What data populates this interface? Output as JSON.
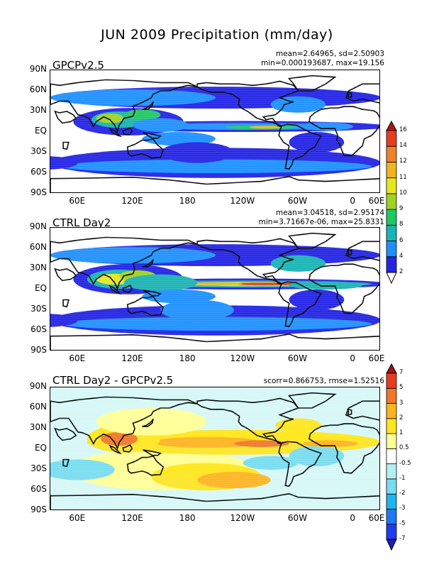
{
  "title": "JUN 2009 Precipitation (mm/day)",
  "lat_labels": [
    "90N",
    "60N",
    "30N",
    "EQ",
    "30S",
    "60S",
    "90S"
  ],
  "lon_labels": [
    "60E",
    "120E",
    "180",
    "120W",
    "60W",
    "0",
    "60E"
  ],
  "panels": [
    {
      "title": "GPCPv2.5",
      "stats_line1": "mean=2.64965, sd=2.50903",
      "stats_line2": "min=0.000193687, max=19.156"
    },
    {
      "title": "CTRL Day2",
      "stats_line1": "mean=3.04518, sd=2.95174",
      "stats_line2": "min=3.71667e-06, max=25.8331"
    },
    {
      "title": "CTRL Day2 - GPCPv2.5",
      "stats_line1": "scorr=0.866753, rmse=1.52516",
      "stats_line2": ""
    }
  ],
  "colorbar_precip": {
    "levels": [
      "2",
      "4",
      "6",
      "8",
      "9",
      "10",
      "11",
      "12",
      "14",
      "16"
    ],
    "colors": [
      "#ffffff",
      "#2323e6",
      "#1e90ff",
      "#19b4b4",
      "#1ec864",
      "#a0d21e",
      "#e6e61e",
      "#f0b41e",
      "#f08228",
      "#e63c1e",
      "#b41414"
    ]
  },
  "colorbar_diff": {
    "levels": [
      "-7",
      "-5",
      "-3",
      "-2",
      "-1",
      "-0.5",
      "0.5",
      "1",
      "2",
      "3",
      "5",
      "7"
    ],
    "colors": [
      "#1e1eb4",
      "#1e3cf0",
      "#1e78f0",
      "#1eb4f0",
      "#78dcf0",
      "#b4f0f0",
      "#ffffff",
      "#ffff96",
      "#ffe61e",
      "#ffb41e",
      "#f07828",
      "#e63c1e",
      "#a01414"
    ]
  },
  "chart_data": [
    {
      "type": "heatmap",
      "title": "GPCPv2.5",
      "units": "mm/day",
      "ylim": [
        "90S",
        "90N"
      ],
      "xlim": [
        "30E",
        "390E"
      ],
      "colorbar_levels": [
        2,
        4,
        6,
        8,
        9,
        10,
        11,
        12,
        14,
        16
      ]
    },
    {
      "type": "heatmap",
      "title": "CTRL Day2",
      "units": "mm/day",
      "ylim": [
        "90S",
        "90N"
      ],
      "xlim": [
        "30E",
        "390E"
      ],
      "colorbar_levels": [
        2,
        4,
        6,
        8,
        9,
        10,
        11,
        12,
        14,
        16
      ]
    },
    {
      "type": "heatmap",
      "title": "CTRL Day2 - GPCPv2.5",
      "units": "mm/day",
      "ylim": [
        "90S",
        "90N"
      ],
      "xlim": [
        "30E",
        "390E"
      ],
      "colorbar_levels": [
        -7,
        -5,
        -3,
        -2,
        -1,
        -0.5,
        0.5,
        1,
        2,
        3,
        5,
        7
      ]
    }
  ]
}
